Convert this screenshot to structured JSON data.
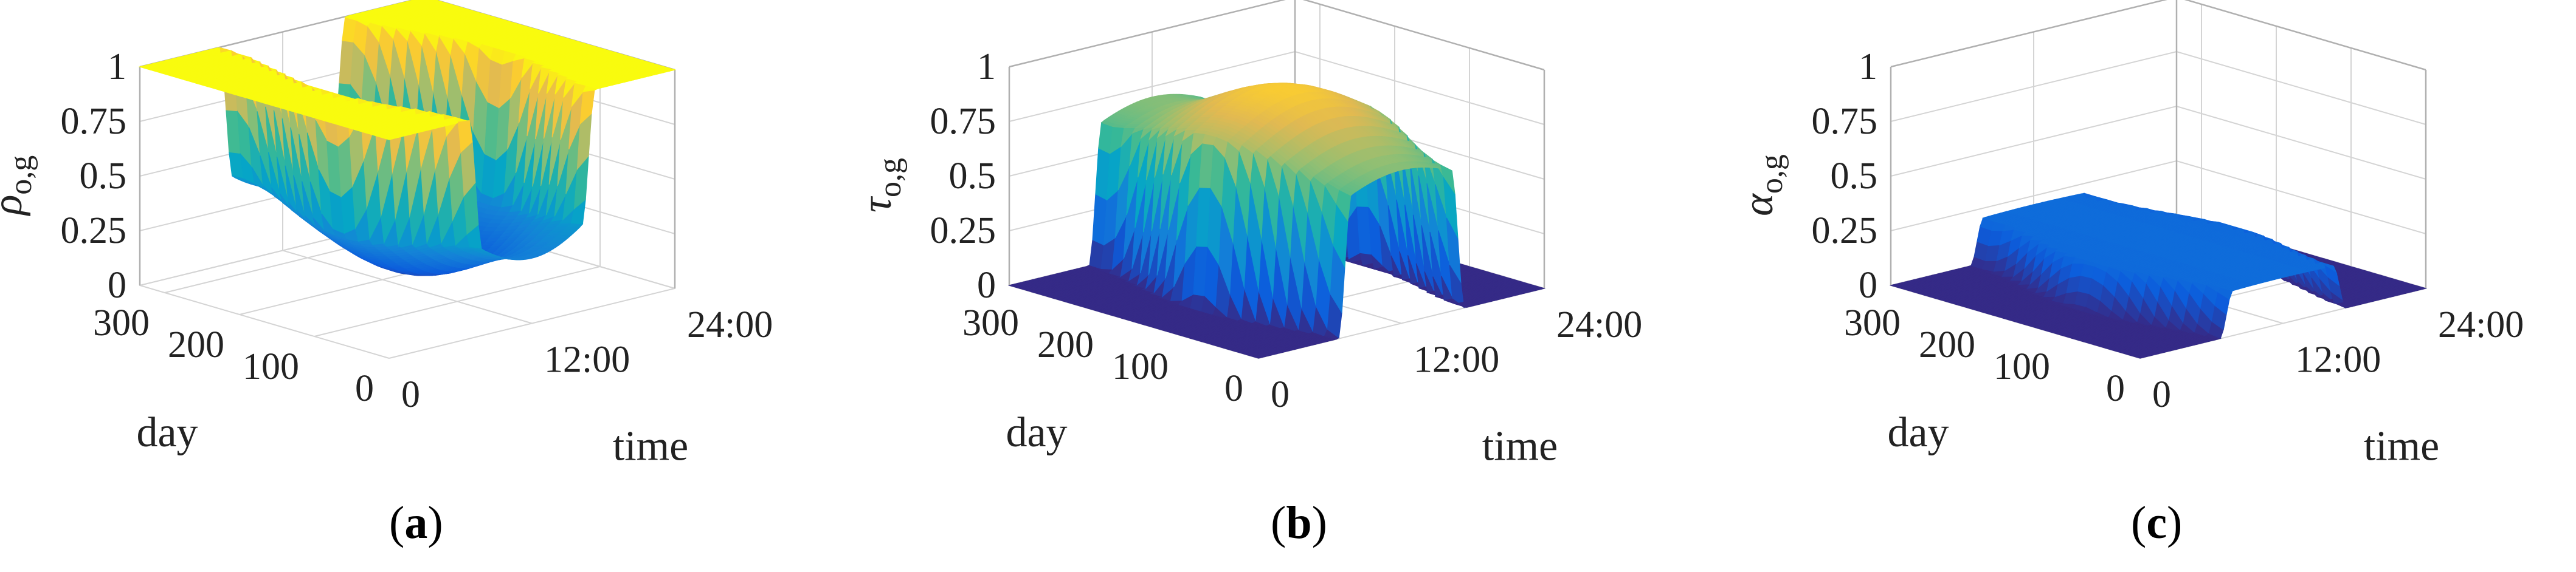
{
  "chart_data": [
    {
      "panel": "a",
      "type": "surface",
      "caption": "a",
      "zlabel_base": "ρ",
      "zlabel_sub": "o,g",
      "xlabel": "time",
      "ylabel": "day",
      "zlim": [
        0,
        1
      ],
      "z_ticks": [
        "0",
        "0.25",
        "0.5",
        "0.75",
        "1"
      ],
      "time_ticks": [
        "0",
        "12:00",
        "24:00"
      ],
      "day_ticks": [
        "0",
        "100",
        "200",
        "300"
      ],
      "profile": "rho",
      "description_values": {
        "night_value": 1,
        "midday_min_summer": 0.08,
        "midday_min_winter": 0.3
      }
    },
    {
      "panel": "b",
      "type": "surface",
      "caption": "b",
      "zlabel_base": "τ",
      "zlabel_sub": "o,g",
      "xlabel": "time",
      "ylabel": "day",
      "zlim": [
        0,
        1
      ],
      "z_ticks": [
        "0",
        "0.25",
        "0.5",
        "0.75",
        "1"
      ],
      "time_ticks": [
        "0",
        "12:00",
        "24:00"
      ],
      "day_ticks": [
        "0",
        "100",
        "200",
        "300"
      ],
      "profile": "tau",
      "description_values": {
        "night_value": 0,
        "midday_max_summer": 0.92,
        "midday_max_winter": 0.7
      }
    },
    {
      "panel": "c",
      "type": "surface",
      "caption": "c",
      "zlabel_base": "α",
      "zlabel_sub": "o,g",
      "xlabel": "time",
      "ylabel": "day",
      "zlim": [
        0,
        1
      ],
      "z_ticks": [
        "0",
        "0.25",
        "0.5",
        "0.75",
        "1"
      ],
      "time_ticks": [
        "0",
        "12:00",
        "24:00"
      ],
      "day_ticks": [
        "0",
        "100",
        "200",
        "300"
      ],
      "profile": "alpha",
      "description_values": {
        "night_value": 0,
        "daytime_plateau": 0.2
      }
    }
  ]
}
